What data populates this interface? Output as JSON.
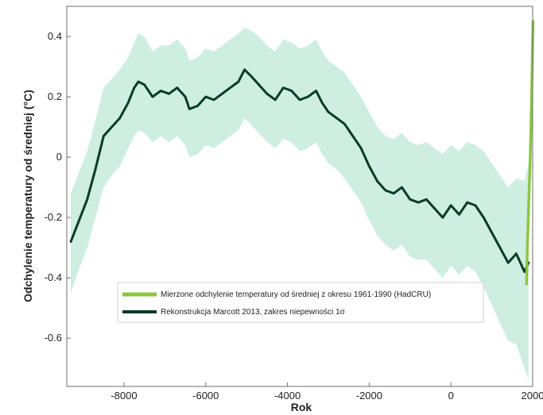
{
  "chart_data": {
    "type": "line",
    "title": "",
    "xlabel": "Rok",
    "ylabel": "Odchylenie temperatury od średniej (°C)",
    "xlim": [
      -9400,
      2000
    ],
    "ylim": [
      -0.76,
      0.5
    ],
    "x_ticks": [
      -8000,
      -6000,
      -4000,
      -2000,
      0,
      2000
    ],
    "x_tick_labels": [
      "-8000",
      "-6000",
      "-4000",
      "-2000",
      "0",
      "2000"
    ],
    "y_ticks": [
      0.4,
      0.2,
      0,
      -0.2,
      -0.4,
      -0.6
    ],
    "y_tick_labels": [
      "0.4",
      "0.2",
      "0",
      "-0.2",
      "-0.4",
      "-0.6"
    ],
    "grid": false,
    "legend_position": "lower-center",
    "legend": [
      {
        "label": "Mierzone odchylenie temperatury od średniej z okresu 1961-1990 (HadCRU)",
        "color": "#8dc63f"
      },
      {
        "label": "Rekonstrukcja Marcott 2013, zakres niepewności  1σ",
        "color": "#0b3b24"
      }
    ],
    "band_color": "#cdeee0",
    "series": [
      {
        "name": "Rekonstrukcja Marcott 2013, zakres niepewności  1σ",
        "color": "#0b3b24",
        "x": [
          -9300,
          -9100,
          -8900,
          -8700,
          -8500,
          -8300,
          -8100,
          -7900,
          -7750,
          -7650,
          -7500,
          -7300,
          -7100,
          -6900,
          -6700,
          -6500,
          -6400,
          -6200,
          -6000,
          -5800,
          -5600,
          -5400,
          -5200,
          -5050,
          -4900,
          -4700,
          -4500,
          -4300,
          -4100,
          -3900,
          -3700,
          -3500,
          -3300,
          -3150,
          -3000,
          -2800,
          -2600,
          -2400,
          -2200,
          -2000,
          -1800,
          -1600,
          -1400,
          -1200,
          -1000,
          -800,
          -600,
          -400,
          -200,
          0,
          200,
          400,
          600,
          800,
          1000,
          1200,
          1400,
          1600,
          1800,
          1900
        ],
        "y": [
          -0.28,
          -0.21,
          -0.14,
          -0.04,
          0.07,
          0.1,
          0.13,
          0.18,
          0.23,
          0.25,
          0.24,
          0.2,
          0.22,
          0.21,
          0.23,
          0.2,
          0.16,
          0.17,
          0.2,
          0.19,
          0.21,
          0.23,
          0.25,
          0.29,
          0.27,
          0.24,
          0.21,
          0.19,
          0.23,
          0.22,
          0.19,
          0.2,
          0.22,
          0.18,
          0.15,
          0.13,
          0.11,
          0.07,
          0.03,
          -0.03,
          -0.08,
          -0.11,
          -0.12,
          -0.1,
          -0.14,
          -0.15,
          -0.14,
          -0.17,
          -0.2,
          -0.16,
          -0.19,
          -0.15,
          -0.16,
          -0.2,
          -0.25,
          -0.3,
          -0.35,
          -0.32,
          -0.38,
          -0.35
        ],
        "band_lower": [
          -0.45,
          -0.37,
          -0.3,
          -0.2,
          -0.1,
          -0.06,
          -0.03,
          0.03,
          0.07,
          0.09,
          0.08,
          0.05,
          0.07,
          0.05,
          0.07,
          0.04,
          0.0,
          0.01,
          0.04,
          0.03,
          0.05,
          0.07,
          0.09,
          0.13,
          0.11,
          0.08,
          0.05,
          0.03,
          0.06,
          0.05,
          0.02,
          0.03,
          0.05,
          0.01,
          -0.02,
          -0.04,
          -0.07,
          -0.11,
          -0.15,
          -0.21,
          -0.26,
          -0.29,
          -0.31,
          -0.29,
          -0.33,
          -0.34,
          -0.34,
          -0.37,
          -0.4,
          -0.36,
          -0.39,
          -0.36,
          -0.38,
          -0.43,
          -0.49,
          -0.55,
          -0.61,
          -0.62,
          -0.7,
          -0.74
        ],
        "band_upper": [
          -0.12,
          -0.05,
          0.02,
          0.12,
          0.23,
          0.26,
          0.29,
          0.33,
          0.38,
          0.41,
          0.4,
          0.35,
          0.37,
          0.37,
          0.39,
          0.36,
          0.32,
          0.33,
          0.36,
          0.35,
          0.37,
          0.39,
          0.41,
          0.43,
          0.42,
          0.4,
          0.37,
          0.35,
          0.39,
          0.38,
          0.36,
          0.37,
          0.39,
          0.35,
          0.32,
          0.3,
          0.28,
          0.24,
          0.2,
          0.15,
          0.1,
          0.07,
          0.06,
          0.08,
          0.05,
          0.04,
          0.05,
          0.03,
          0.01,
          0.04,
          0.02,
          0.05,
          0.04,
          0.02,
          -0.02,
          -0.06,
          -0.1,
          -0.07,
          -0.08,
          -0.02
        ]
      },
      {
        "name": "Mierzone odchylenie temperatury od średniej z okresu 1961-1990 (HadCRU)",
        "color": "#8dc63f",
        "x": [
          1850,
          1870,
          1890,
          1910,
          1930,
          1950,
          1970,
          1990,
          2010
        ],
        "y": [
          -0.42,
          -0.3,
          -0.22,
          -0.12,
          -0.05,
          0.05,
          0.18,
          0.32,
          0.45
        ]
      }
    ]
  }
}
